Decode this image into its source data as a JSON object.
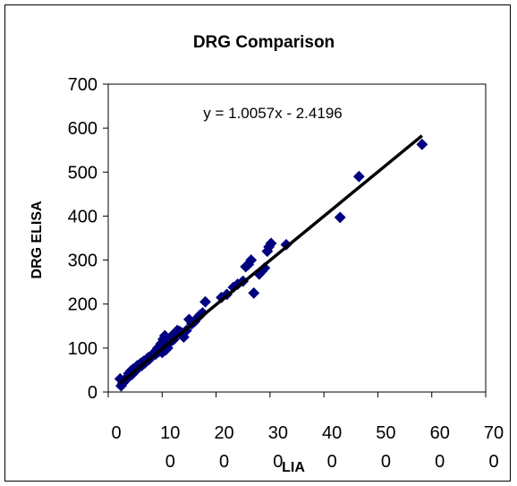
{
  "chart_data": {
    "type": "scatter",
    "title": "DRG Comparison",
    "xlabel": "LIA",
    "ylabel": "DRG ELISA",
    "xlim": [
      0,
      700
    ],
    "ylim": [
      0,
      700
    ],
    "x_ticks": [
      {
        "value": 0,
        "label_top": "0",
        "label_bottom": ""
      },
      {
        "value": 100,
        "label_top": "10",
        "label_bottom": "0"
      },
      {
        "value": 200,
        "label_top": "20",
        "label_bottom": "0"
      },
      {
        "value": 300,
        "label_top": "30",
        "label_bottom": "0"
      },
      {
        "value": 400,
        "label_top": "40",
        "label_bottom": "0"
      },
      {
        "value": 500,
        "label_top": "50",
        "label_bottom": "0"
      },
      {
        "value": 600,
        "label_top": "60",
        "label_bottom": "0"
      },
      {
        "value": 700,
        "label_top": "70",
        "label_bottom": "0"
      }
    ],
    "y_ticks": [
      0,
      100,
      200,
      300,
      400,
      500,
      600,
      700
    ],
    "grid": false,
    "legend": "none",
    "trendline": {
      "equation": "y = 1.0057x - 2.4196",
      "slope": 1.0057,
      "intercept": -2.4196,
      "x_range": [
        22,
        582
      ]
    },
    "marker_color": "#000080",
    "line_color": "#000000",
    "plot_background": "#ffffff",
    "points": [
      {
        "x": 22,
        "y": 30
      },
      {
        "x": 24,
        "y": 14
      },
      {
        "x": 27,
        "y": 20
      },
      {
        "x": 30,
        "y": 25
      },
      {
        "x": 33,
        "y": 28
      },
      {
        "x": 36,
        "y": 35
      },
      {
        "x": 38,
        "y": 42
      },
      {
        "x": 40,
        "y": 38
      },
      {
        "x": 42,
        "y": 48
      },
      {
        "x": 44,
        "y": 40
      },
      {
        "x": 46,
        "y": 52
      },
      {
        "x": 48,
        "y": 45
      },
      {
        "x": 50,
        "y": 55
      },
      {
        "x": 52,
        "y": 50
      },
      {
        "x": 54,
        "y": 60
      },
      {
        "x": 56,
        "y": 58
      },
      {
        "x": 58,
        "y": 62
      },
      {
        "x": 60,
        "y": 65
      },
      {
        "x": 62,
        "y": 60
      },
      {
        "x": 64,
        "y": 68
      },
      {
        "x": 66,
        "y": 70
      },
      {
        "x": 68,
        "y": 66
      },
      {
        "x": 70,
        "y": 72
      },
      {
        "x": 72,
        "y": 75
      },
      {
        "x": 74,
        "y": 78
      },
      {
        "x": 76,
        "y": 74
      },
      {
        "x": 78,
        "y": 80
      },
      {
        "x": 80,
        "y": 82
      },
      {
        "x": 82,
        "y": 85
      },
      {
        "x": 84,
        "y": 88
      },
      {
        "x": 86,
        "y": 90
      },
      {
        "x": 88,
        "y": 86
      },
      {
        "x": 90,
        "y": 95
      },
      {
        "x": 92,
        "y": 100
      },
      {
        "x": 94,
        "y": 92
      },
      {
        "x": 96,
        "y": 98
      },
      {
        "x": 98,
        "y": 110
      },
      {
        "x": 100,
        "y": 105
      },
      {
        "x": 100,
        "y": 90
      },
      {
        "x": 102,
        "y": 120
      },
      {
        "x": 104,
        "y": 115
      },
      {
        "x": 105,
        "y": 128
      },
      {
        "x": 106,
        "y": 95
      },
      {
        "x": 108,
        "y": 108
      },
      {
        "x": 110,
        "y": 100
      },
      {
        "x": 112,
        "y": 118
      },
      {
        "x": 114,
        "y": 112
      },
      {
        "x": 116,
        "y": 125
      },
      {
        "x": 120,
        "y": 130
      },
      {
        "x": 122,
        "y": 120
      },
      {
        "x": 125,
        "y": 135
      },
      {
        "x": 128,
        "y": 140
      },
      {
        "x": 132,
        "y": 138
      },
      {
        "x": 136,
        "y": 135
      },
      {
        "x": 140,
        "y": 125
      },
      {
        "x": 145,
        "y": 140
      },
      {
        "x": 150,
        "y": 165
      },
      {
        "x": 155,
        "y": 155
      },
      {
        "x": 160,
        "y": 160
      },
      {
        "x": 165,
        "y": 168
      },
      {
        "x": 170,
        "y": 175
      },
      {
        "x": 175,
        "y": 180
      },
      {
        "x": 180,
        "y": 205
      },
      {
        "x": 210,
        "y": 215
      },
      {
        "x": 220,
        "y": 222
      },
      {
        "x": 232,
        "y": 238
      },
      {
        "x": 240,
        "y": 245
      },
      {
        "x": 250,
        "y": 252
      },
      {
        "x": 255,
        "y": 285
      },
      {
        "x": 260,
        "y": 290
      },
      {
        "x": 265,
        "y": 300
      },
      {
        "x": 270,
        "y": 225
      },
      {
        "x": 280,
        "y": 268
      },
      {
        "x": 285,
        "y": 275
      },
      {
        "x": 290,
        "y": 282
      },
      {
        "x": 295,
        "y": 320
      },
      {
        "x": 298,
        "y": 330
      },
      {
        "x": 302,
        "y": 338
      },
      {
        "x": 330,
        "y": 335
      },
      {
        "x": 430,
        "y": 397
      },
      {
        "x": 465,
        "y": 490
      },
      {
        "x": 582,
        "y": 563
      }
    ]
  }
}
